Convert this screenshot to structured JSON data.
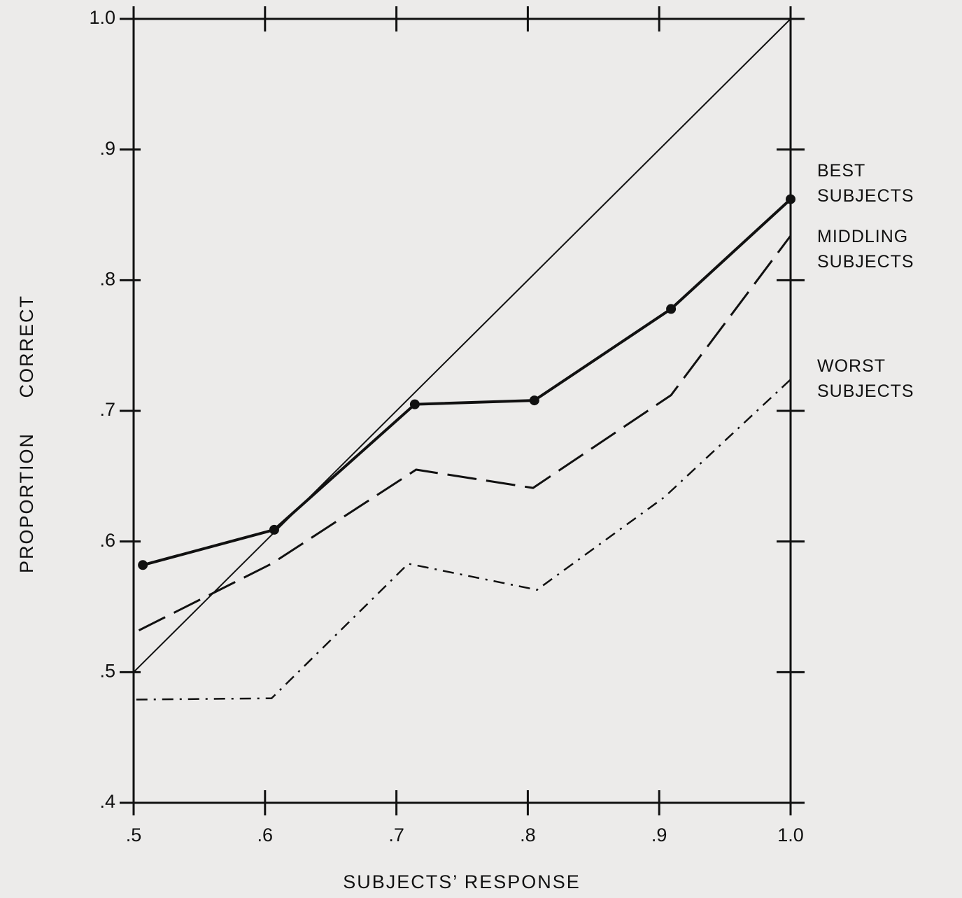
{
  "chart_data": {
    "type": "line",
    "xlabel": "SUBJECTS’ RESPONSE",
    "ylabel": "PROPORTION CORRECT",
    "xlim": [
      0.5,
      1.0
    ],
    "ylim": [
      0.4,
      1.0
    ],
    "xticks": [
      {
        "value": 0.5,
        "label": ".5"
      },
      {
        "value": 0.6,
        "label": ".6"
      },
      {
        "value": 0.7,
        "label": ".7"
      },
      {
        "value": 0.8,
        "label": ".8"
      },
      {
        "value": 0.9,
        "label": ".9"
      },
      {
        "value": 1.0,
        "label": "1.0"
      }
    ],
    "yticks": [
      {
        "value": 0.4,
        "label": ".4"
      },
      {
        "value": 0.5,
        "label": ".5"
      },
      {
        "value": 0.6,
        "label": ".6"
      },
      {
        "value": 0.7,
        "label": ".7"
      },
      {
        "value": 0.8,
        "label": ".8"
      },
      {
        "value": 0.9,
        "label": ".9"
      },
      {
        "value": 1.0,
        "label": "1.0"
      }
    ],
    "grid": false,
    "series": [
      {
        "color": "#111111",
        "x": [
          0.5,
          1.0
        ],
        "values": [
          0.5,
          1.0
        ]
      },
      {
        "name": "BEST SUBJECTS",
        "color": "#111111",
        "markers": true,
        "x": [
          0.507,
          0.607,
          0.714,
          0.805,
          0.909,
          1.0
        ],
        "values": [
          0.582,
          0.609,
          0.705,
          0.708,
          0.778,
          0.862
        ]
      },
      {
        "name": "MIDDLING SUBJECTS",
        "color": "#111111",
        "x": [
          0.504,
          0.605,
          0.715,
          0.804,
          0.909,
          1.0
        ],
        "values": [
          0.532,
          0.583,
          0.655,
          0.641,
          0.712,
          0.834
        ]
      },
      {
        "name": "WORST SUBJECTS",
        "color": "#111111",
        "x": [
          0.502,
          0.605,
          0.709,
          0.807,
          0.904,
          1.0
        ],
        "values": [
          0.479,
          0.48,
          0.583,
          0.563,
          0.634,
          0.724
        ]
      }
    ]
  }
}
